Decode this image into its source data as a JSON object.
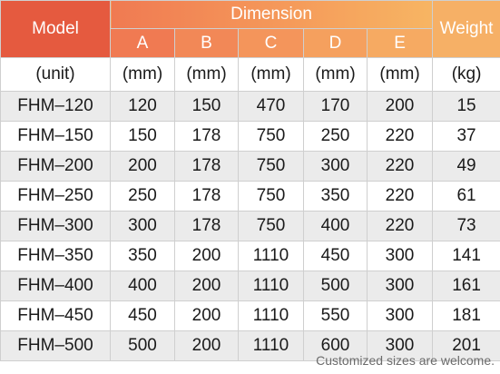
{
  "header": {
    "model": "Model",
    "dimension": "Dimension",
    "weight": "Weight",
    "dims": [
      "A",
      "B",
      "C",
      "D",
      "E"
    ]
  },
  "units": [
    "(unit)",
    "(mm)",
    "(mm)",
    "(mm)",
    "(mm)",
    "(mm)",
    "(kg)"
  ],
  "rows": [
    [
      "FHM–120",
      "120",
      "150",
      "470",
      "170",
      "200",
      "15"
    ],
    [
      "FHM–150",
      "150",
      "178",
      "750",
      "250",
      "220",
      "37"
    ],
    [
      "FHM–200",
      "200",
      "178",
      "750",
      "300",
      "220",
      "49"
    ],
    [
      "FHM–250",
      "250",
      "178",
      "750",
      "350",
      "220",
      "61"
    ],
    [
      "FHM–300",
      "300",
      "178",
      "750",
      "400",
      "220",
      "73"
    ],
    [
      "FHM–350",
      "350",
      "200",
      "1110",
      "450",
      "300",
      "141"
    ],
    [
      "FHM–400",
      "400",
      "200",
      "1110",
      "500",
      "300",
      "161"
    ],
    [
      "FHM–450",
      "450",
      "200",
      "1110",
      "550",
      "300",
      "181"
    ],
    [
      "FHM–500",
      "500",
      "200",
      "1110",
      "600",
      "300",
      "201"
    ]
  ],
  "note": "Customized sizes are welcome.",
  "colors": {
    "model_header": "#e55a3f",
    "dimension_header_start": "#f07a52",
    "dimension_header_end": "#f7b563",
    "weight_header": "#f6b066",
    "stripe": "#ebebeb"
  }
}
